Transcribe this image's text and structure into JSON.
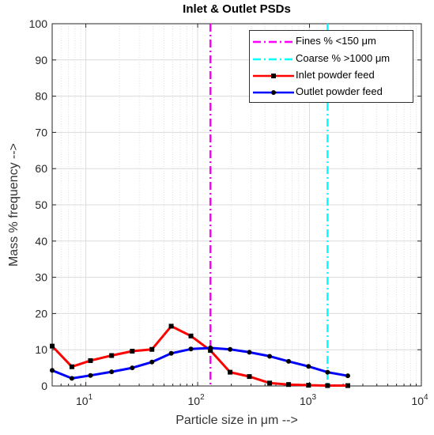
{
  "chart_data": {
    "type": "line",
    "title": "Inlet & Outlet PSDs",
    "xlabel": "Particle size in μm -->",
    "ylabel": "Mass % frequency -->",
    "xscale": "log",
    "xlim": [
      5,
      10000
    ],
    "ylim": [
      0,
      100
    ],
    "grid": true,
    "minor_grid_x": true,
    "legend_position": "top-right",
    "x_ticks": [
      10,
      100,
      1000,
      10000
    ],
    "x_tick_labels": [
      {
        "base": "10",
        "exp": "1"
      },
      {
        "base": "10",
        "exp": "2"
      },
      {
        "base": "10",
        "exp": "3"
      },
      {
        "base": "10",
        "exp": "4"
      }
    ],
    "y_ticks": [
      0,
      10,
      20,
      30,
      40,
      50,
      60,
      70,
      80,
      90,
      100
    ],
    "y_tick_labels": [
      "0",
      "10",
      "20",
      "30",
      "40",
      "50",
      "60",
      "70",
      "80",
      "90",
      "100"
    ],
    "vlines": [
      {
        "name": "Fines % <150 μm",
        "x": 130,
        "color": "#ff00ff",
        "style": "dashdot"
      },
      {
        "name": "Coarse % >1000 μm",
        "x": 1450,
        "color": "#00ffff",
        "style": "dashdot"
      }
    ],
    "series": [
      {
        "name": "Inlet powder feed",
        "color": "#ff0000",
        "marker": "square",
        "x": [
          5,
          7.5,
          11,
          17,
          26,
          39,
          58,
          87,
          130,
          195,
          290,
          440,
          650,
          980,
          1450,
          2200
        ],
        "y": [
          11,
          5.3,
          7,
          8.4,
          9.6,
          10.1,
          16.5,
          13.8,
          9.8,
          3.8,
          2.6,
          0.8,
          0.4,
          0.2,
          0.1,
          0.1
        ]
      },
      {
        "name": "Outlet powder feed",
        "color": "#0000ff",
        "marker": "dot",
        "x": [
          5,
          7.5,
          11,
          17,
          26,
          39,
          58,
          87,
          130,
          195,
          290,
          440,
          650,
          980,
          1450,
          2200
        ],
        "y": [
          4.3,
          2.1,
          2.9,
          3.9,
          5.0,
          6.6,
          9.0,
          10.2,
          10.5,
          10.1,
          9.3,
          8.2,
          6.8,
          5.4,
          3.8,
          2.8
        ]
      }
    ]
  }
}
